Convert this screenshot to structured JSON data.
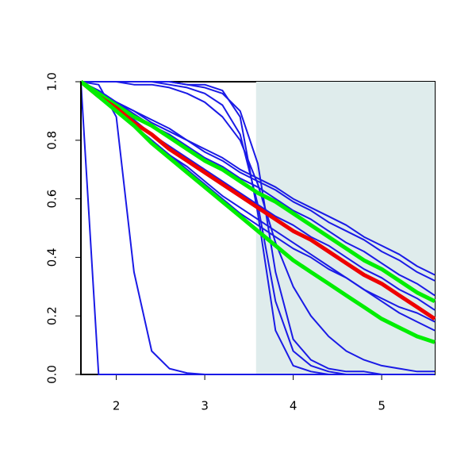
{
  "chart_data": {
    "type": "line",
    "x": [
      1.6,
      1.8,
      2.0,
      2.2,
      2.4,
      2.6,
      2.8,
      3.0,
      3.2,
      3.4,
      3.6,
      3.8,
      4.0,
      4.2,
      4.4,
      4.6,
      4.8,
      5.0,
      5.2,
      5.4,
      5.6
    ],
    "xlim": [
      1.6,
      5.6
    ],
    "ylim": [
      0,
      1
    ],
    "xticks": [
      2,
      3,
      4,
      5
    ],
    "yticks": [
      {
        "value": 0,
        "label": "0.0"
      },
      0.2,
      0.4,
      0.6,
      0.8,
      {
        "value": 1,
        "label": "1.0"
      }
    ],
    "shade": {
      "xmin": 3.58,
      "color": "#dfecec"
    },
    "series": [
      {
        "color": "#1a1ae6",
        "width": 2,
        "values": [
          1,
          0,
          0,
          0,
          0,
          0,
          0,
          0,
          0,
          0,
          0,
          0,
          0,
          0,
          0,
          0,
          0,
          0,
          0,
          0,
          0
        ]
      },
      {
        "color": "#1a1ae6",
        "width": 2,
        "values": [
          1,
          0.99,
          0.88,
          0.35,
          0.08,
          0.02,
          0.005,
          0,
          0,
          0,
          0,
          0,
          0,
          0,
          0,
          0,
          0,
          0,
          0,
          0,
          0
        ]
      },
      {
        "color": "#1a1ae6",
        "width": 2,
        "values": [
          1,
          1,
          1,
          1,
          1,
          1,
          0.99,
          0.99,
          0.97,
          0.88,
          0.55,
          0.15,
          0.03,
          0.01,
          0,
          0,
          0,
          0,
          0,
          0,
          0
        ]
      },
      {
        "color": "#1a1ae6",
        "width": 2,
        "values": [
          1,
          1,
          1,
          1,
          1,
          1,
          0.99,
          0.98,
          0.96,
          0.9,
          0.72,
          0.35,
          0.12,
          0.05,
          0.02,
          0.01,
          0.01,
          0,
          0,
          0,
          0
        ]
      },
      {
        "color": "#1a1ae6",
        "width": 2,
        "values": [
          1,
          1,
          1,
          1,
          1,
          0.99,
          0.98,
          0.96,
          0.92,
          0.82,
          0.58,
          0.25,
          0.08,
          0.03,
          0.01,
          0,
          0,
          0,
          0,
          0,
          0
        ]
      },
      {
        "color": "#1a1ae6",
        "width": 2,
        "values": [
          1,
          1,
          1,
          0.99,
          0.99,
          0.98,
          0.96,
          0.93,
          0.88,
          0.8,
          0.65,
          0.45,
          0.3,
          0.2,
          0.13,
          0.08,
          0.05,
          0.03,
          0.02,
          0.01,
          0.01
        ]
      },
      {
        "color": "#1a1ae6",
        "width": 2,
        "values": [
          1,
          0.97,
          0.93,
          0.9,
          0.87,
          0.84,
          0.8,
          0.77,
          0.74,
          0.7,
          0.67,
          0.64,
          0.6,
          0.57,
          0.54,
          0.51,
          0.47,
          0.44,
          0.41,
          0.37,
          0.34
        ]
      },
      {
        "color": "#1a1ae6",
        "width": 2,
        "values": [
          1,
          0.97,
          0.93,
          0.9,
          0.86,
          0.83,
          0.8,
          0.76,
          0.73,
          0.69,
          0.66,
          0.63,
          0.59,
          0.56,
          0.52,
          0.49,
          0.46,
          0.42,
          0.39,
          0.35,
          0.32
        ]
      },
      {
        "color": "#1a1ae6",
        "width": 2,
        "values": [
          1,
          0.96,
          0.93,
          0.89,
          0.85,
          0.82,
          0.78,
          0.74,
          0.71,
          0.67,
          0.64,
          0.6,
          0.56,
          0.53,
          0.49,
          0.45,
          0.42,
          0.38,
          0.34,
          0.31,
          0.27
        ]
      },
      {
        "color": "#1a1ae6",
        "width": 2,
        "values": [
          1,
          0.95,
          0.91,
          0.87,
          0.82,
          0.78,
          0.74,
          0.7,
          0.66,
          0.62,
          0.58,
          0.54,
          0.51,
          0.47,
          0.44,
          0.4,
          0.36,
          0.33,
          0.29,
          0.26,
          0.22
        ]
      },
      {
        "color": "#1a1ae6",
        "width": 2,
        "values": [
          1,
          0.95,
          0.9,
          0.85,
          0.8,
          0.75,
          0.7,
          0.65,
          0.6,
          0.55,
          0.51,
          0.47,
          0.43,
          0.4,
          0.36,
          0.33,
          0.29,
          0.26,
          0.23,
          0.21,
          0.18
        ]
      },
      {
        "color": "#1a1ae6",
        "width": 2,
        "values": [
          1,
          0.95,
          0.9,
          0.85,
          0.8,
          0.75,
          0.71,
          0.66,
          0.61,
          0.57,
          0.53,
          0.49,
          0.45,
          0.41,
          0.37,
          0.33,
          0.29,
          0.25,
          0.21,
          0.18,
          0.15
        ]
      },
      {
        "color": "#00ee00",
        "width": 5,
        "values": [
          1,
          0.96,
          0.92,
          0.88,
          0.85,
          0.81,
          0.77,
          0.73,
          0.7,
          0.66,
          0.62,
          0.59,
          0.55,
          0.51,
          0.47,
          0.43,
          0.39,
          0.36,
          0.32,
          0.28,
          0.25
        ]
      },
      {
        "color": "#ee0000",
        "width": 5,
        "values": [
          1,
          0.95,
          0.91,
          0.86,
          0.82,
          0.77,
          0.73,
          0.69,
          0.65,
          0.61,
          0.57,
          0.53,
          0.49,
          0.46,
          0.42,
          0.38,
          0.34,
          0.31,
          0.27,
          0.23,
          0.19
        ]
      },
      {
        "color": "#00ee00",
        "width": 5,
        "values": [
          1,
          0.95,
          0.9,
          0.85,
          0.79,
          0.74,
          0.69,
          0.64,
          0.59,
          0.54,
          0.49,
          0.44,
          0.39,
          0.35,
          0.31,
          0.27,
          0.23,
          0.19,
          0.16,
          0.13,
          0.11
        ]
      }
    ]
  }
}
